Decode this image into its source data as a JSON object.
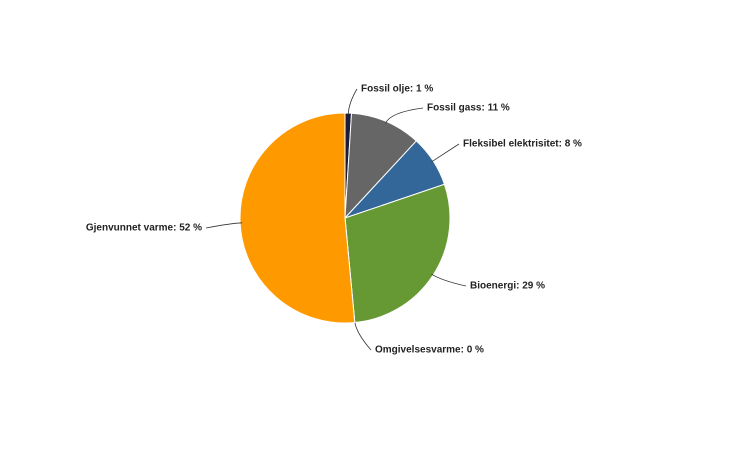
{
  "chart_data": {
    "type": "pie",
    "categories": [
      "Fossil olje: 1 %",
      "Fossil gass: 11 %",
      "Fleksibel elektrisitet: 8 %",
      "Bioenergi: 29 %",
      "Omgivelsesvarme: 0 %",
      "Gjenvunnet varme: 52 %"
    ],
    "values": [
      1,
      11,
      8,
      29,
      0,
      52
    ],
    "colors": [
      "#1c1c3a",
      "#666666",
      "#336699",
      "#669933",
      "#cccccc",
      "#ff9900"
    ]
  }
}
